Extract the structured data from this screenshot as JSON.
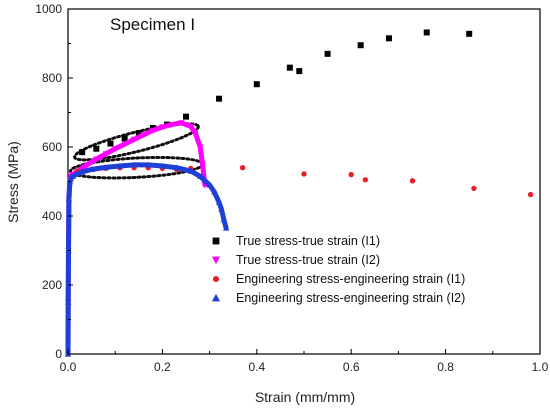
{
  "chart_data": {
    "type": "scatter",
    "title": "Specimen I",
    "xlabel": "Strain (mm/mm)",
    "ylabel": "Stress (MPa)",
    "xlim": [
      0.0,
      1.0
    ],
    "ylim": [
      0,
      1000
    ],
    "xticks": [
      "0.0",
      "0.2",
      "0.4",
      "0.6",
      "0.8",
      "1.0"
    ],
    "yticks": [
      "0",
      "200",
      "400",
      "600",
      "800",
      "1000"
    ],
    "grid": false,
    "legend_position": "lower-right",
    "series": [
      {
        "name": "True stress-true strain (I1)",
        "marker": "square",
        "color": "#000000",
        "x": [
          0.03,
          0.06,
          0.09,
          0.12,
          0.15,
          0.18,
          0.21,
          0.25,
          0.32,
          0.4,
          0.47,
          0.49,
          0.55,
          0.62,
          0.68,
          0.76,
          0.85
        ],
        "y": [
          585,
          595,
          610,
          625,
          640,
          655,
          665,
          688,
          740,
          782,
          830,
          820,
          870,
          895,
          915,
          932,
          928
        ]
      },
      {
        "name": "True stress-true strain (I2)",
        "marker": "triangle-down",
        "color": "#ff00ff",
        "curve": true,
        "x": [
          0.0,
          0.0005,
          0.001,
          0.002,
          0.004,
          0.006,
          0.01,
          0.02,
          0.04,
          0.06,
          0.08,
          0.1,
          0.12,
          0.14,
          0.16,
          0.18,
          0.2,
          0.22,
          0.24,
          0.26,
          0.27,
          0.28,
          0.285,
          0.29
        ],
        "y": [
          0,
          150,
          300,
          450,
          505,
          515,
          520,
          530,
          548,
          565,
          580,
          595,
          608,
          622,
          635,
          648,
          658,
          665,
          670,
          660,
          640,
          600,
          550,
          490
        ]
      },
      {
        "name": "Engineering stress-engineering strain (I1)",
        "marker": "circle",
        "color": "#e8202a",
        "x": [
          0.02,
          0.05,
          0.08,
          0.11,
          0.14,
          0.17,
          0.2,
          0.23,
          0.26,
          0.37,
          0.5,
          0.6,
          0.63,
          0.73,
          0.86,
          0.98
        ],
        "y": [
          530,
          535,
          538,
          540,
          540,
          540,
          538,
          535,
          538,
          540,
          522,
          520,
          505,
          502,
          480,
          462
        ]
      },
      {
        "name": "Engineering stress-engineering strain (I2)",
        "marker": "triangle-up",
        "color": "#1f3fd6",
        "curve": true,
        "x": [
          0.0,
          0.0005,
          0.001,
          0.002,
          0.004,
          0.006,
          0.01,
          0.03,
          0.05,
          0.08,
          0.11,
          0.14,
          0.17,
          0.2,
          0.23,
          0.26,
          0.28,
          0.3,
          0.31,
          0.32,
          0.325,
          0.33,
          0.335
        ],
        "y": [
          0,
          150,
          300,
          450,
          500,
          508,
          515,
          528,
          535,
          541,
          545,
          548,
          548,
          545,
          540,
          530,
          515,
          490,
          470,
          440,
          420,
          390,
          365
        ]
      }
    ]
  }
}
